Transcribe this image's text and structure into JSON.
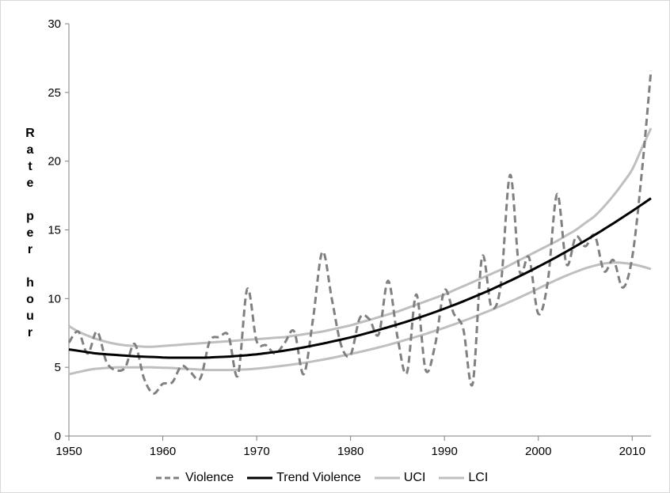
{
  "chart_data": {
    "type": "line",
    "title": "",
    "xlabel": "",
    "ylabel": "Rate per hour",
    "ylabel_lines": [
      "R",
      "a",
      "t",
      "e",
      "",
      "p",
      "e",
      "r",
      "",
      "h",
      "o",
      "u",
      "r"
    ],
    "xlim": [
      1950,
      2012
    ],
    "ylim": [
      0,
      30
    ],
    "x_ticks": [
      1950,
      1960,
      1970,
      1980,
      1990,
      2000,
      2010
    ],
    "y_ticks": [
      0,
      5,
      10,
      15,
      20,
      25,
      30
    ],
    "grid": false,
    "legend": "bottom",
    "x": [
      1950,
      1951,
      1952,
      1953,
      1954,
      1955,
      1956,
      1957,
      1958,
      1959,
      1960,
      1961,
      1962,
      1963,
      1964,
      1965,
      1966,
      1967,
      1968,
      1969,
      1970,
      1971,
      1972,
      1973,
      1974,
      1975,
      1976,
      1977,
      1978,
      1979,
      1980,
      1981,
      1982,
      1983,
      1984,
      1985,
      1986,
      1987,
      1988,
      1989,
      1990,
      1991,
      1992,
      1993,
      1994,
      1995,
      1996,
      1997,
      1998,
      1999,
      2000,
      2001,
      2002,
      2003,
      2004,
      2005,
      2006,
      2007,
      2008,
      2009,
      2010,
      2011,
      2012
    ],
    "series": [
      {
        "name": "Violence",
        "color": "#808080",
        "style": "dashed",
        "values": [
          6.8,
          7.6,
          6.0,
          7.6,
          5.4,
          4.8,
          5.0,
          6.7,
          4.2,
          3.1,
          3.8,
          3.9,
          5.1,
          4.6,
          4.2,
          6.9,
          7.2,
          7.3,
          4.4,
          10.7,
          6.9,
          6.6,
          6.0,
          6.8,
          7.6,
          4.5,
          8.5,
          13.4,
          10.0,
          6.6,
          5.9,
          8.6,
          8.5,
          7.4,
          11.3,
          7.2,
          4.6,
          10.3,
          4.8,
          6.6,
          10.6,
          8.9,
          7.8,
          3.8,
          13.0,
          9.4,
          11.0,
          19.0,
          12.0,
          13.0,
          8.9,
          11.2,
          17.6,
          12.5,
          14.5,
          13.8,
          14.6,
          12.0,
          12.8,
          10.8,
          13.0,
          19.0,
          26.6
        ]
      },
      {
        "name": "Trend Violence",
        "color": "#000000",
        "style": "solid",
        "values": [
          6.3,
          6.2,
          6.1,
          6.0,
          5.95,
          5.9,
          5.85,
          5.8,
          5.77,
          5.75,
          5.72,
          5.7,
          5.7,
          5.7,
          5.7,
          5.72,
          5.75,
          5.78,
          5.83,
          5.88,
          5.95,
          6.03,
          6.12,
          6.22,
          6.33,
          6.45,
          6.58,
          6.72,
          6.87,
          7.02,
          7.18,
          7.35,
          7.53,
          7.72,
          7.92,
          8.12,
          8.33,
          8.55,
          8.78,
          9.02,
          9.27,
          9.53,
          9.8,
          10.08,
          10.37,
          10.67,
          10.98,
          11.3,
          11.63,
          11.97,
          12.32,
          12.68,
          13.05,
          13.43,
          13.82,
          14.22,
          14.63,
          15.05,
          15.48,
          15.92,
          16.37,
          16.83,
          17.3
        ]
      },
      {
        "name": "UCI",
        "color": "#bfbfbf",
        "style": "solid",
        "values": [
          8.0,
          7.6,
          7.3,
          7.05,
          6.85,
          6.7,
          6.6,
          6.55,
          6.5,
          6.5,
          6.55,
          6.6,
          6.65,
          6.7,
          6.75,
          6.8,
          6.85,
          6.9,
          6.95,
          7.0,
          7.05,
          7.1,
          7.15,
          7.2,
          7.3,
          7.4,
          7.5,
          7.6,
          7.75,
          7.9,
          8.05,
          8.25,
          8.45,
          8.65,
          8.85,
          9.05,
          9.3,
          9.55,
          9.8,
          10.05,
          10.3,
          10.6,
          10.9,
          11.2,
          11.5,
          11.8,
          12.1,
          12.45,
          12.8,
          13.15,
          13.5,
          13.85,
          14.2,
          14.6,
          15.0,
          15.5,
          16.0,
          16.7,
          17.5,
          18.4,
          19.4,
          20.9,
          22.4
        ]
      },
      {
        "name": "LCI",
        "color": "#bfbfbf",
        "style": "solid",
        "values": [
          4.5,
          4.65,
          4.8,
          4.9,
          4.95,
          5.0,
          5.0,
          5.0,
          5.0,
          5.0,
          4.97,
          4.95,
          4.9,
          4.87,
          4.83,
          4.8,
          4.8,
          4.8,
          4.82,
          4.85,
          4.9,
          4.97,
          5.05,
          5.13,
          5.22,
          5.32,
          5.43,
          5.55,
          5.68,
          5.82,
          5.97,
          6.12,
          6.28,
          6.45,
          6.63,
          6.82,
          7.02,
          7.22,
          7.43,
          7.65,
          7.88,
          8.12,
          8.37,
          8.63,
          8.9,
          9.18,
          9.47,
          9.77,
          10.08,
          10.4,
          10.73,
          11.06,
          11.38,
          11.68,
          11.95,
          12.2,
          12.4,
          12.55,
          12.62,
          12.6,
          12.5,
          12.35,
          12.15
        ]
      }
    ]
  }
}
